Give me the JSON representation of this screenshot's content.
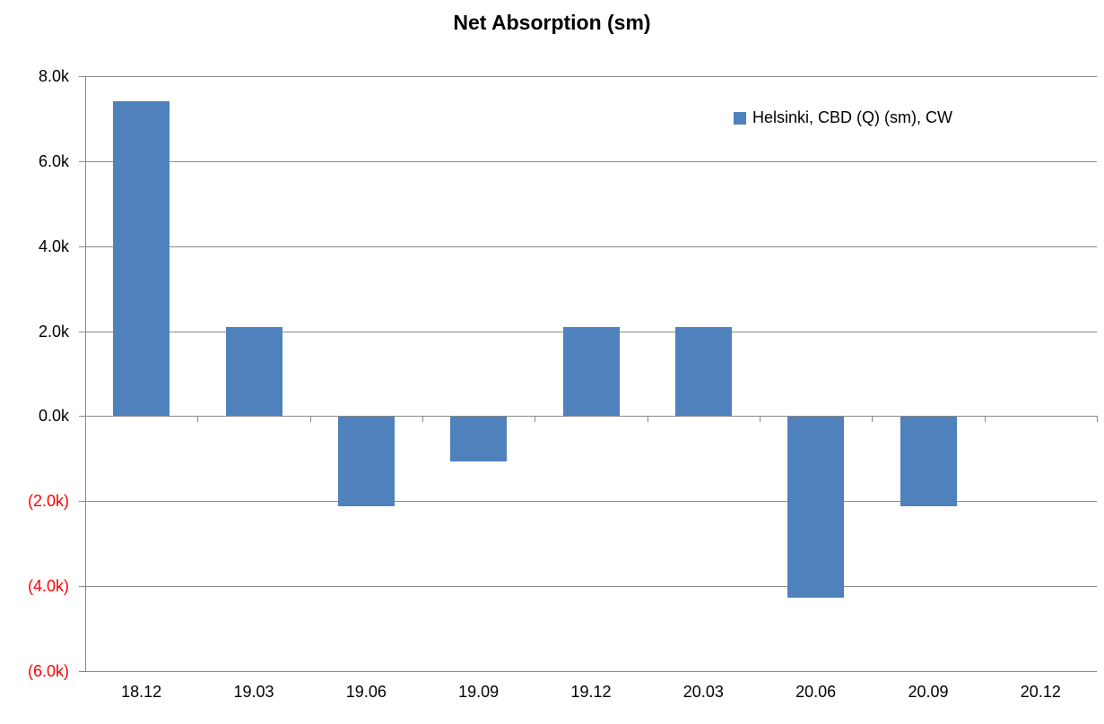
{
  "title": "Net Absorption (sm)",
  "legend": {
    "label": "Helsinki, CBD (Q) (sm), CW"
  },
  "chart_data": {
    "type": "bar",
    "title": "Net Absorption (sm)",
    "categories": [
      "18.12",
      "19.03",
      "19.06",
      "19.09",
      "19.12",
      "20.03",
      "20.06",
      "20.09",
      "20.12"
    ],
    "series": [
      {
        "name": "Helsinki, CBD (Q) (sm), CW",
        "values": [
          7400,
          2100,
          -2100,
          -1050,
          2100,
          2100,
          -4250,
          -2100,
          0
        ]
      }
    ],
    "xlabel": "",
    "ylabel": "",
    "ylim": [
      -6000,
      8000
    ],
    "y_ticks": [
      {
        "label": "8.0k",
        "value": 8000
      },
      {
        "label": "6.0k",
        "value": 6000
      },
      {
        "label": "4.0k",
        "value": 4000
      },
      {
        "label": "2.0k",
        "value": 2000
      },
      {
        "label": "0.0k",
        "value": 0
      },
      {
        "label": "(2.0k)",
        "value": -2000
      },
      {
        "label": "(4.0k)",
        "value": -4000
      },
      {
        "label": "(6.0k)",
        "value": -6000
      }
    ],
    "grid": true,
    "legend_position": "top-right",
    "bar_color": "#4F81BD",
    "gridline_color": "#8A8A8A",
    "axis_color": "#8A8A8A",
    "tick_label_color": "#000000",
    "negative_tick_label_color": "#FF0000"
  }
}
